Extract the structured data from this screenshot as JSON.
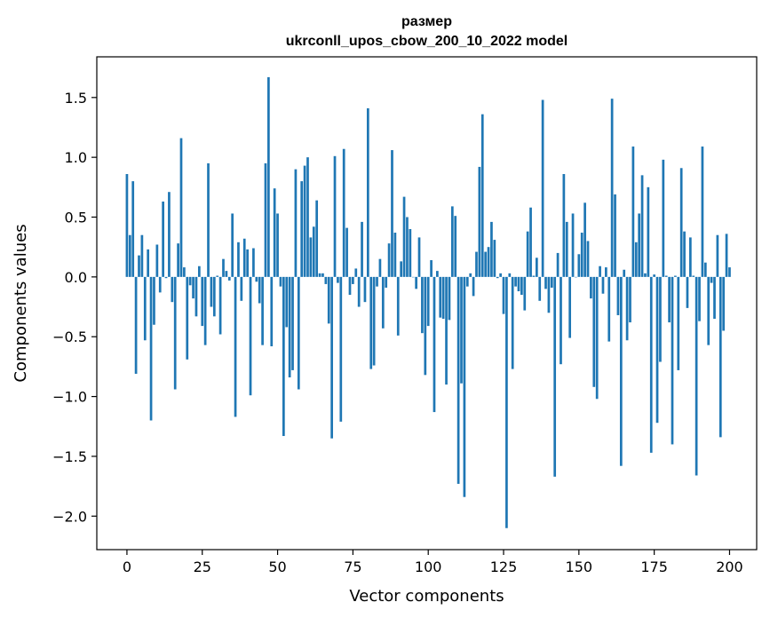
{
  "chart_data": {
    "type": "bar",
    "title": "размер",
    "subtitle": "ukrconll_upos_cbow_200_10_2022 model",
    "xlabel": "Vector components",
    "ylabel": "Components values",
    "xlim": [
      -10,
      209
    ],
    "ylim": [
      -2.28,
      1.84
    ],
    "xticks": [
      0,
      25,
      50,
      75,
      100,
      125,
      150,
      175,
      200
    ],
    "xtick_labels": [
      "0",
      "25",
      "50",
      "75",
      "100",
      "125",
      "150",
      "175",
      "200"
    ],
    "yticks": [
      1.5,
      1.0,
      0.5,
      0.0,
      -0.5,
      -1.0,
      -1.5,
      -2.0
    ],
    "ytick_labels": [
      "1.5",
      "1.0",
      "0.5",
      "0.0",
      "−0.5",
      "−1.0",
      "−1.5",
      "−2.0"
    ],
    "bar_color": "#1f77b4",
    "grid": false,
    "legend": "none",
    "values": [
      0.86,
      0.35,
      0.8,
      -0.81,
      0.18,
      0.35,
      -0.53,
      0.23,
      -1.2,
      -0.4,
      0.27,
      -0.13,
      0.63,
      -0.01,
      0.71,
      -0.21,
      -0.94,
      0.28,
      1.16,
      0.08,
      -0.69,
      -0.07,
      -0.18,
      -0.33,
      0.09,
      -0.41,
      -0.57,
      0.95,
      -0.25,
      -0.33,
      0.01,
      -0.48,
      0.15,
      0.05,
      -0.03,
      0.53,
      -1.17,
      0.29,
      -0.2,
      0.32,
      0.23,
      -0.99,
      0.24,
      -0.04,
      -0.22,
      -0.57,
      0.95,
      1.67,
      -0.58,
      0.74,
      0.53,
      -0.08,
      -1.33,
      -0.42,
      -0.84,
      -0.78,
      0.9,
      -0.94,
      0.8,
      0.93,
      1.0,
      0.33,
      0.42,
      0.64,
      0.03,
      0.03,
      -0.06,
      -0.39,
      -1.35,
      1.01,
      -0.05,
      -1.21,
      1.07,
      0.41,
      -0.15,
      -0.06,
      0.07,
      -0.25,
      0.46,
      -0.21,
      1.41,
      -0.77,
      -0.74,
      -0.08,
      0.15,
      -0.43,
      -0.09,
      0.28,
      1.06,
      0.37,
      -0.49,
      0.13,
      0.67,
      0.5,
      0.4,
      0.0,
      -0.1,
      0.33,
      -0.47,
      -0.82,
      -0.41,
      0.14,
      -1.13,
      0.05,
      -0.34,
      -0.35,
      -0.9,
      -0.36,
      0.59,
      0.51,
      -1.73,
      -0.89,
      -1.84,
      -0.08,
      0.03,
      -0.16,
      0.21,
      0.92,
      1.36,
      0.21,
      0.25,
      0.46,
      0.31,
      -0.01,
      0.03,
      -0.31,
      -2.1,
      0.03,
      -0.77,
      -0.08,
      -0.12,
      -0.15,
      -0.28,
      0.38,
      0.58,
      0.01,
      0.16,
      -0.2,
      1.48,
      -0.1,
      -0.3,
      -0.09,
      -1.67,
      0.2,
      -0.73,
      0.86,
      0.46,
      -0.51,
      0.53,
      0.0,
      0.19,
      0.37,
      0.62,
      0.3,
      -0.18,
      -0.92,
      -1.02,
      0.09,
      -0.14,
      0.08,
      -0.54,
      1.49,
      0.69,
      -0.32,
      -1.58,
      0.06,
      -0.53,
      -0.38,
      1.09,
      0.29,
      0.53,
      0.85,
      0.03,
      0.75,
      -1.47,
      0.02,
      -1.22,
      -0.71,
      0.98,
      0.01,
      -0.38,
      -1.4,
      0.01,
      -0.78,
      0.91,
      0.38,
      -0.26,
      0.33,
      0.01,
      -1.66,
      -0.37,
      1.09,
      0.12,
      -0.57,
      -0.05,
      -0.35,
      0.35,
      -1.34,
      -0.45,
      0.36,
      0.08
    ]
  }
}
